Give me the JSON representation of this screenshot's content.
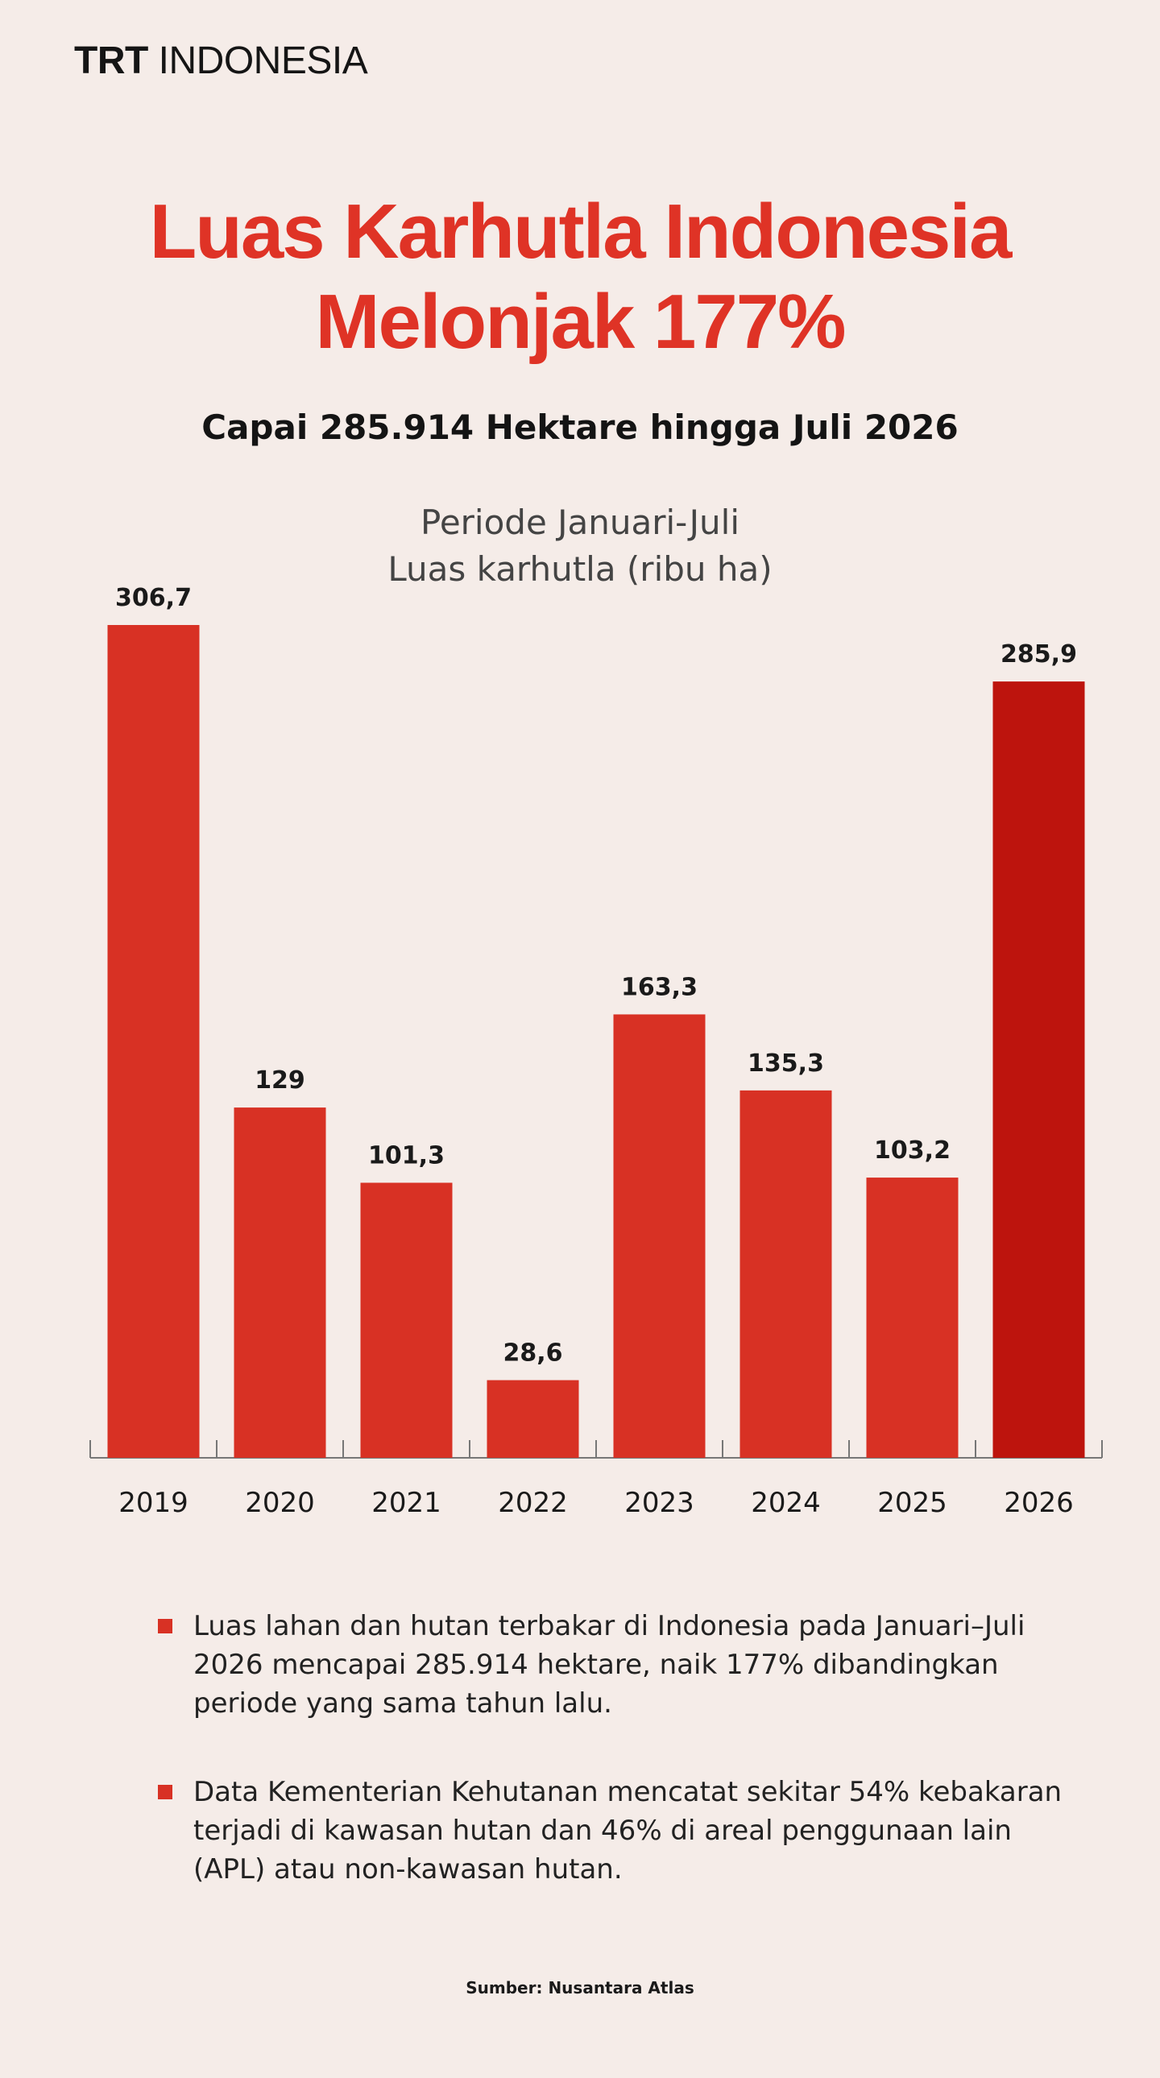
{
  "brand": {
    "name": "TRT",
    "country": "INDONESIA"
  },
  "headline": {
    "line1": "Luas Karhutla Indonesia",
    "line2": "Melonjak 177%"
  },
  "subheadline": "Capai 285.914 Hektare hingga Juli 2026",
  "chart_data": {
    "type": "bar",
    "title": "Periode Januari-Juli",
    "subtitle": "Luas karhutla (ribu ha)",
    "categories": [
      "2019",
      "2020",
      "2021",
      "2022",
      "2023",
      "2024",
      "2025",
      "2026"
    ],
    "values": [
      306.7,
      129,
      101.3,
      28.6,
      163.3,
      135.3,
      103.2,
      285.9
    ],
    "value_labels": [
      "306,7",
      "129",
      "101,3",
      "28,6",
      "163,3",
      "135,3",
      "103,2",
      "285,9"
    ],
    "ylim": [
      0,
      306.7
    ],
    "grid": false,
    "colors": {
      "default": "#d83124",
      "highlight": "#bd140d"
    },
    "highlight_category": "2026"
  },
  "bullets": [
    "Luas lahan dan hutan terbakar di Indonesia pada Januari–Juli 2026 mencapai 285.914 hektare, naik 177% dibandingkan periode yang sama tahun lalu.",
    "Data Kementerian Kehutanan mencatat sekitar 54% kebakaran terjadi di kawasan hutan dan 46% di areal penggunaan lain (APL) atau non-kawasan hutan."
  ],
  "source": "Sumber: Nusantara Atlas"
}
